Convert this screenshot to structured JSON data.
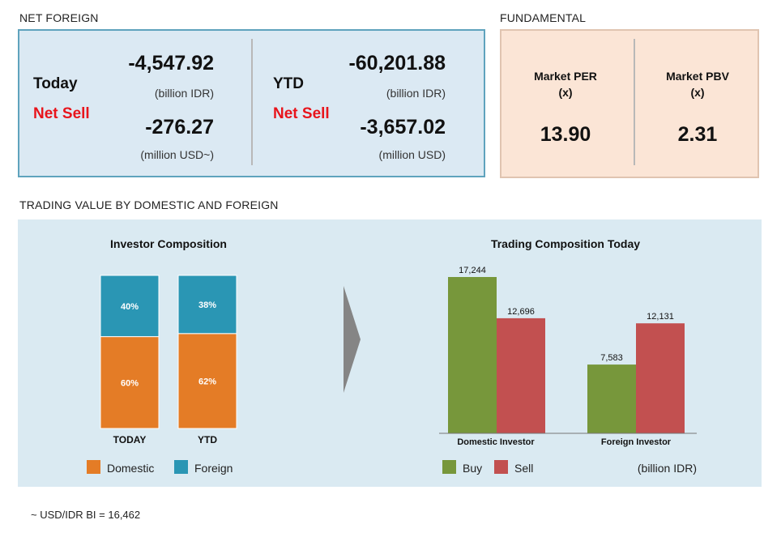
{
  "net_foreign": {
    "title": "NET FOREIGN",
    "today": {
      "label": "Today",
      "status": "Net Sell",
      "value_idr": "-4,547.92",
      "unit_idr": "(billion IDR)",
      "value_usd": "-276.27",
      "unit_usd": "(million USD~)"
    },
    "ytd": {
      "label": "YTD",
      "status": "Net Sell",
      "value_idr": "-60,201.88",
      "unit_idr": "(billion IDR)",
      "value_usd": "-3,657.02",
      "unit_usd": "(million USD)"
    }
  },
  "fundamental": {
    "title": "FUNDAMENTAL",
    "per": {
      "label_line1": "Market PER",
      "label_line2": "(x)",
      "value": "13.90"
    },
    "pbv": {
      "label_line1": "Market PBV",
      "label_line2": "(x)",
      "value": "2.31"
    }
  },
  "trading": {
    "title": "TRADING VALUE BY DOMESTIC AND FOREIGN",
    "unit_note": "(billion IDR)"
  },
  "footer": "~ USD/IDR BI = 16,462",
  "colors": {
    "domestic": "#e47c26",
    "foreign": "#2a96b4",
    "buy": "#77973b",
    "sell": "#c25050",
    "arrow": "#858585"
  },
  "chart_data": [
    {
      "type": "bar",
      "stacked": true,
      "title": "Investor Composition",
      "categories": [
        "TODAY",
        "YTD"
      ],
      "series": [
        {
          "name": "Domestic",
          "values": [
            60,
            62
          ],
          "labels": [
            "60%",
            "62%"
          ]
        },
        {
          "name": "Foreign",
          "values": [
            40,
            38
          ],
          "labels": [
            "40%",
            "38%"
          ]
        }
      ],
      "ylim": [
        0,
        100
      ],
      "legend": "bottom"
    },
    {
      "type": "bar",
      "title": "Trading Composition Today",
      "categories": [
        "Domestic Investor",
        "Foreign Investor"
      ],
      "series": [
        {
          "name": "Buy",
          "values": [
            17244,
            7583
          ],
          "labels": [
            "17,244",
            "7,583"
          ]
        },
        {
          "name": "Sell",
          "values": [
            12696,
            12131
          ],
          "labels": [
            "12,696",
            "12,131"
          ]
        }
      ],
      "ylim": [
        0,
        17244
      ],
      "legend": "bottom"
    }
  ]
}
